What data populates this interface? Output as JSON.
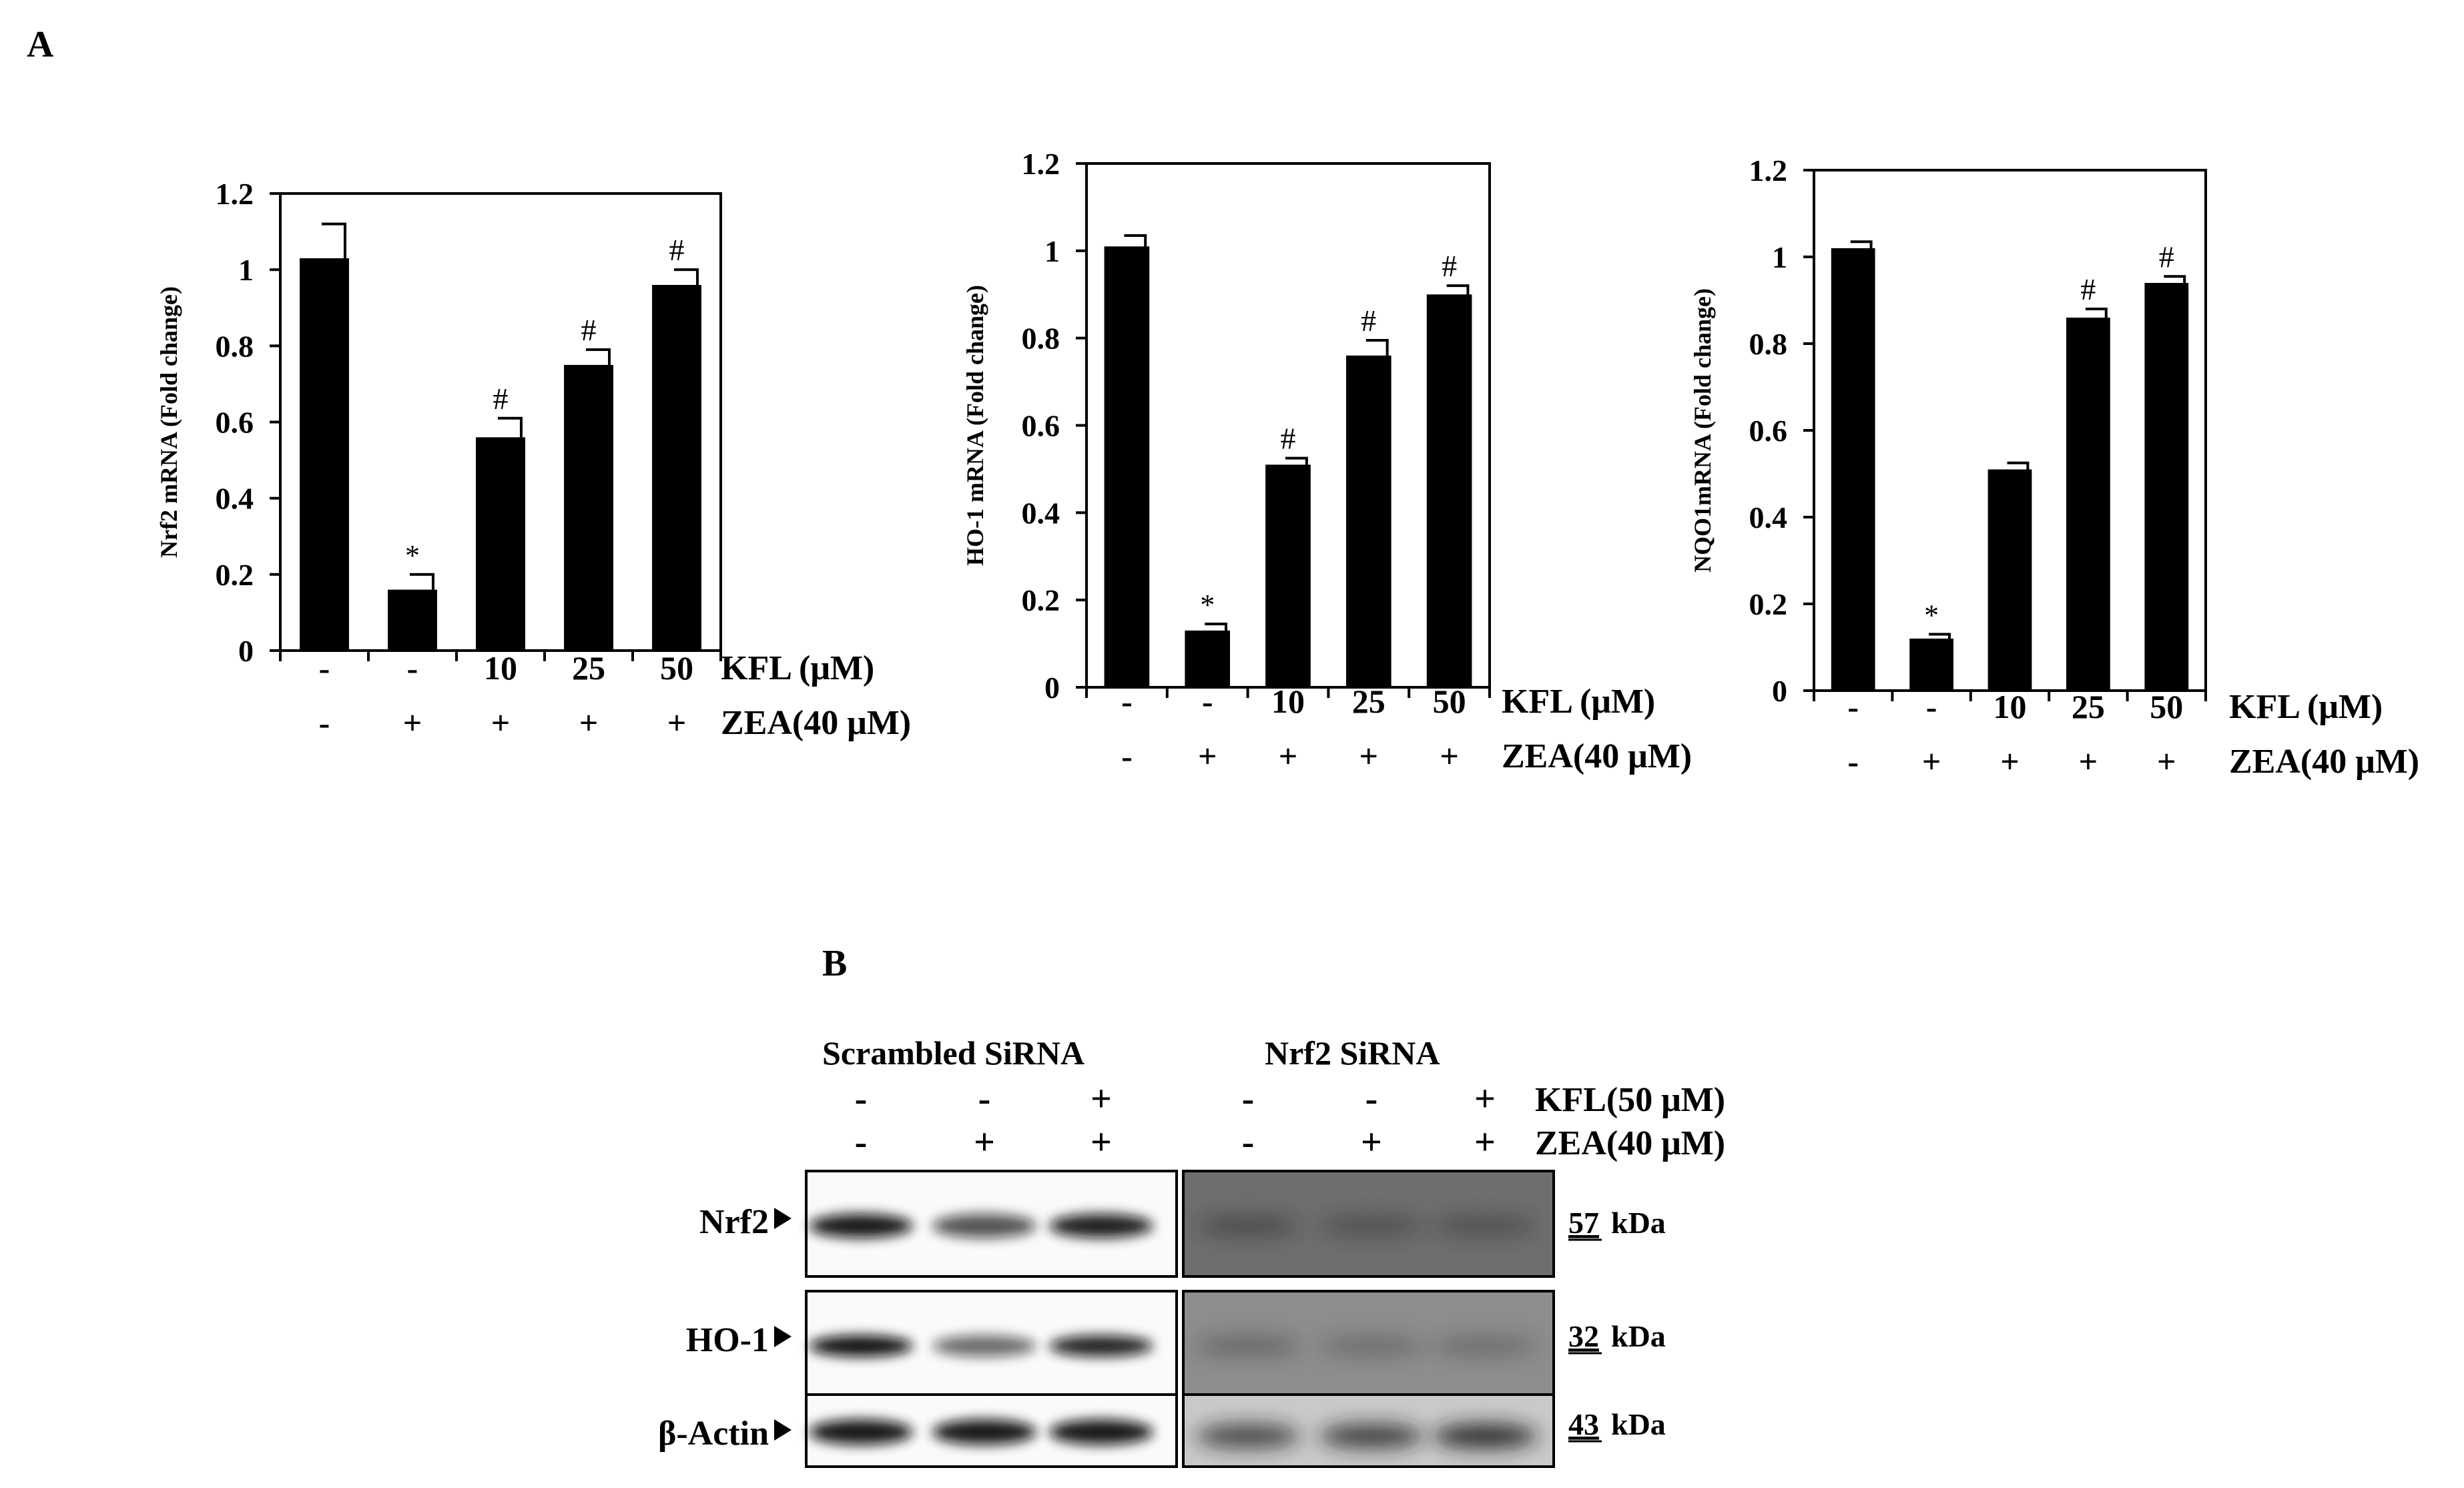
{
  "panel_a_label": "A",
  "panel_b_label": "B",
  "chart_data": [
    {
      "type": "bar",
      "ylabel": "Nrf2 mRNA (Fold change)",
      "ylim": [
        0,
        1.2
      ],
      "yticks": [
        "0",
        "0.2",
        "0.4",
        "0.6",
        "0.8",
        "1",
        "1.2"
      ],
      "values": [
        1.03,
        0.16,
        0.56,
        0.75,
        0.96
      ],
      "errors": [
        0.09,
        0.04,
        0.05,
        0.04,
        0.04
      ],
      "marks": [
        "",
        "*",
        "#",
        "#",
        "#"
      ],
      "kfl_row": [
        "-",
        "-",
        "10",
        "25",
        "50"
      ],
      "zea_row": [
        "-",
        "+",
        "+",
        "+",
        "+"
      ],
      "kfl_label": "KFL (μM)",
      "zea_label": "ZEA(40 μM)",
      "grid": false,
      "bar_color": "#000000"
    },
    {
      "type": "bar",
      "ylabel": "HO-1 mRNA (Fold change)",
      "ylim": [
        0,
        1.2
      ],
      "yticks": [
        "0",
        "0.2",
        "0.4",
        "0.6",
        "0.8",
        "1",
        "1.2"
      ],
      "values": [
        1.01,
        0.13,
        0.51,
        0.76,
        0.9
      ],
      "errors": [
        0.025,
        0.015,
        0.015,
        0.035,
        0.02
      ],
      "marks": [
        "",
        "*",
        "#",
        "#",
        "#"
      ],
      "kfl_row": [
        "-",
        "-",
        "10",
        "25",
        "50"
      ],
      "zea_row": [
        "-",
        "+",
        "+",
        "+",
        "+"
      ],
      "kfl_label": "KFL (μM)",
      "zea_label": "ZEA(40 μM)",
      "grid": false,
      "bar_color": "#000000"
    },
    {
      "type": "bar",
      "ylabel": "NQO1mRNA (Fold change)",
      "ylim": [
        0,
        1.2
      ],
      "yticks": [
        "0",
        "0.2",
        "0.4",
        "0.6",
        "0.8",
        "1",
        "1.2"
      ],
      "values": [
        1.02,
        0.12,
        0.51,
        0.86,
        0.94
      ],
      "errors": [
        0.015,
        0.01,
        0.015,
        0.02,
        0.015
      ],
      "marks": [
        "",
        "*",
        "",
        "#",
        "#"
      ],
      "kfl_row": [
        "-",
        "-",
        "10",
        "25",
        "50"
      ],
      "zea_row": [
        "-",
        "+",
        "+",
        "+",
        "+"
      ],
      "kfl_label": "KFL (μM)",
      "zea_label": "ZEA(40 μM)",
      "grid": false,
      "bar_color": "#000000"
    }
  ],
  "western_blot": {
    "group_labels": [
      "Scrambled SiRNA",
      "Nrf2 SiRNA"
    ],
    "kfl_row": [
      "-",
      "-",
      "+",
      "-",
      "-",
      "+"
    ],
    "zea_row": [
      "-",
      "+",
      "+",
      "-",
      "+",
      "+"
    ],
    "kfl_label": "KFL(50 μM)",
    "zea_label": "ZEA(40 μM)",
    "rows": [
      {
        "label": "Nrf2",
        "kda_value": "57",
        "kda_unit": "kDa"
      },
      {
        "label": "HO-1",
        "kda_value": "32",
        "kda_unit": "kDa"
      },
      {
        "label": "β-Actin",
        "kda_value": "43",
        "kda_unit": "kDa"
      }
    ]
  }
}
